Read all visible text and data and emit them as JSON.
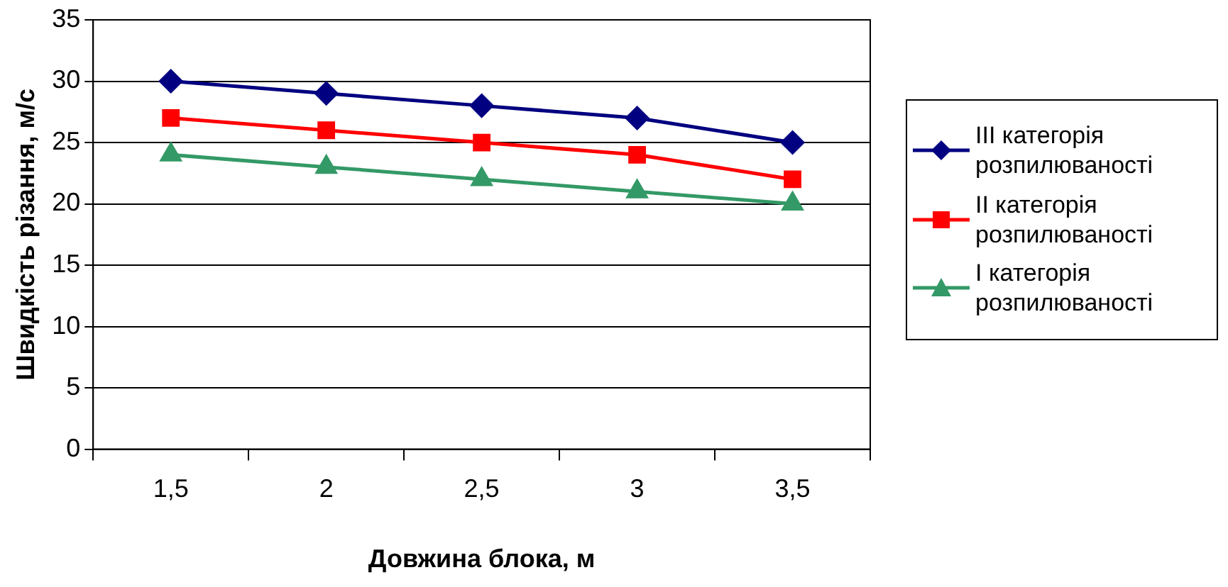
{
  "chart_data": {
    "type": "line",
    "xlabel": "Довжина блока, м",
    "ylabel": "Швидкість різання, м/с",
    "categories": [
      "1,5",
      "2",
      "2,5",
      "3",
      "3,5"
    ],
    "series": [
      {
        "name": "III категорія розпилюваності",
        "color": "#000080",
        "marker": "diamond",
        "values": [
          30,
          29,
          28,
          27,
          25
        ]
      },
      {
        "name": "II категорія розпилюваності",
        "color": "#ff0000",
        "marker": "square",
        "values": [
          27,
          26,
          25,
          24,
          22
        ]
      },
      {
        "name": "I категорія розпилюваності",
        "color": "#339966",
        "marker": "triangle",
        "values": [
          24,
          23,
          22,
          21,
          20
        ]
      }
    ],
    "ylim": [
      0,
      35
    ],
    "yticks": [
      0,
      5,
      10,
      15,
      20,
      25,
      30,
      35
    ],
    "grid": "y",
    "legend": "right",
    "line_style": "solid"
  }
}
